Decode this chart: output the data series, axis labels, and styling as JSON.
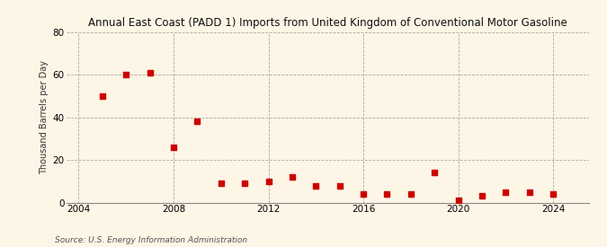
{
  "title": "Annual East Coast (PADD 1) Imports from United Kingdom of Conventional Motor Gasoline",
  "ylabel": "Thousand Barrels per Day",
  "source": "Source: U.S. Energy Information Administration",
  "background_color": "#fdf5e6",
  "marker_color": "#cc0000",
  "xlim": [
    2003.5,
    2025.5
  ],
  "ylim": [
    0,
    80
  ],
  "yticks": [
    0,
    20,
    40,
    60,
    80
  ],
  "xticks": [
    2004,
    2008,
    2012,
    2016,
    2020,
    2024
  ],
  "data": {
    "2005": 50,
    "2006": 60,
    "2007": 61,
    "2008": 26,
    "2009": 38,
    "2010": 9,
    "2011": 9,
    "2012": 10,
    "2013": 12,
    "2014": 8,
    "2015": 8,
    "2016": 4,
    "2017": 4,
    "2018": 4,
    "2019": 14,
    "2020": 1,
    "2021": 3,
    "2022": 5,
    "2023": 5,
    "2024": 4
  }
}
